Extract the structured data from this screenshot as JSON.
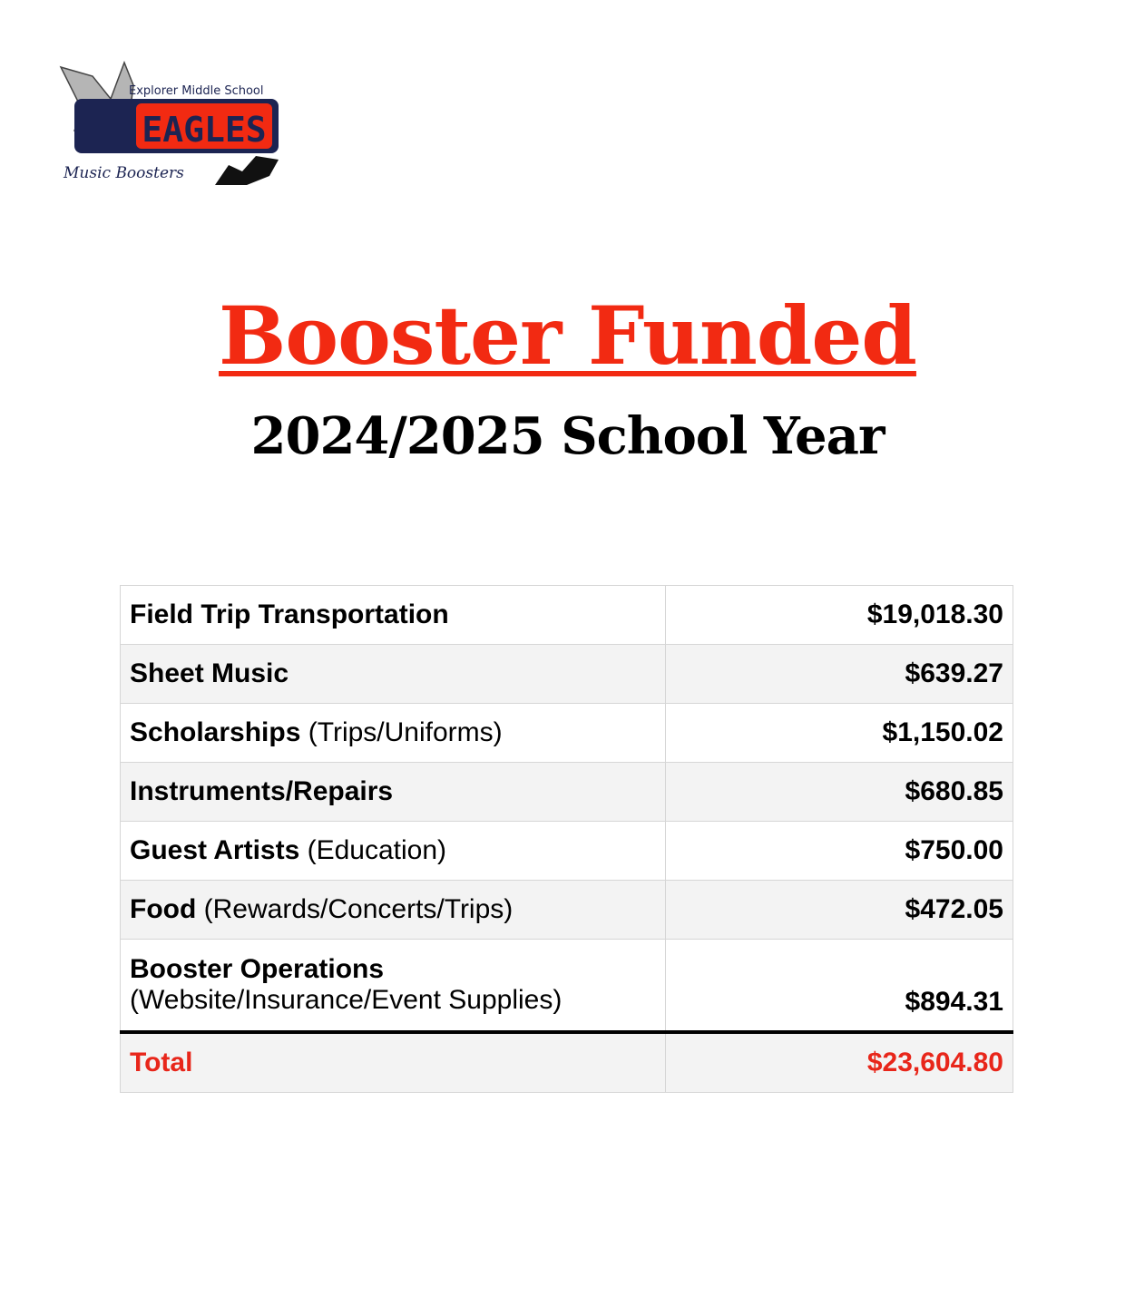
{
  "logo": {
    "school": "Explorer Middle School",
    "mascot": "EAGLES",
    "group": "Music Boosters"
  },
  "title": "Booster Funded",
  "subtitle": "2024/2025 School Year",
  "rows": [
    {
      "label": "Field Trip Transportation",
      "note": "",
      "amount": "$19,018.30"
    },
    {
      "label": "Sheet Music",
      "note": "",
      "amount": "$639.27"
    },
    {
      "label": "Scholarships",
      "note": "(Trips/Uniforms)",
      "amount": "$1,150.02"
    },
    {
      "label": "Instruments/Repairs",
      "note": "",
      "amount": "$680.85"
    },
    {
      "label": "Guest Artists",
      "note": "(Education)",
      "amount": "$750.00"
    },
    {
      "label": "Food",
      "note": "(Rewards/Concerts/Trips)",
      "amount": "$472.05"
    },
    {
      "label": "Booster Operations",
      "note": "(Website/Insurance/Event Supplies)",
      "amount": "$894.31"
    }
  ],
  "total": {
    "label": "Total",
    "amount": "$23,604.80"
  },
  "colors": {
    "accent": "#f22a12",
    "navy": "#1c2452",
    "row_alt": "#f3f3f3"
  }
}
